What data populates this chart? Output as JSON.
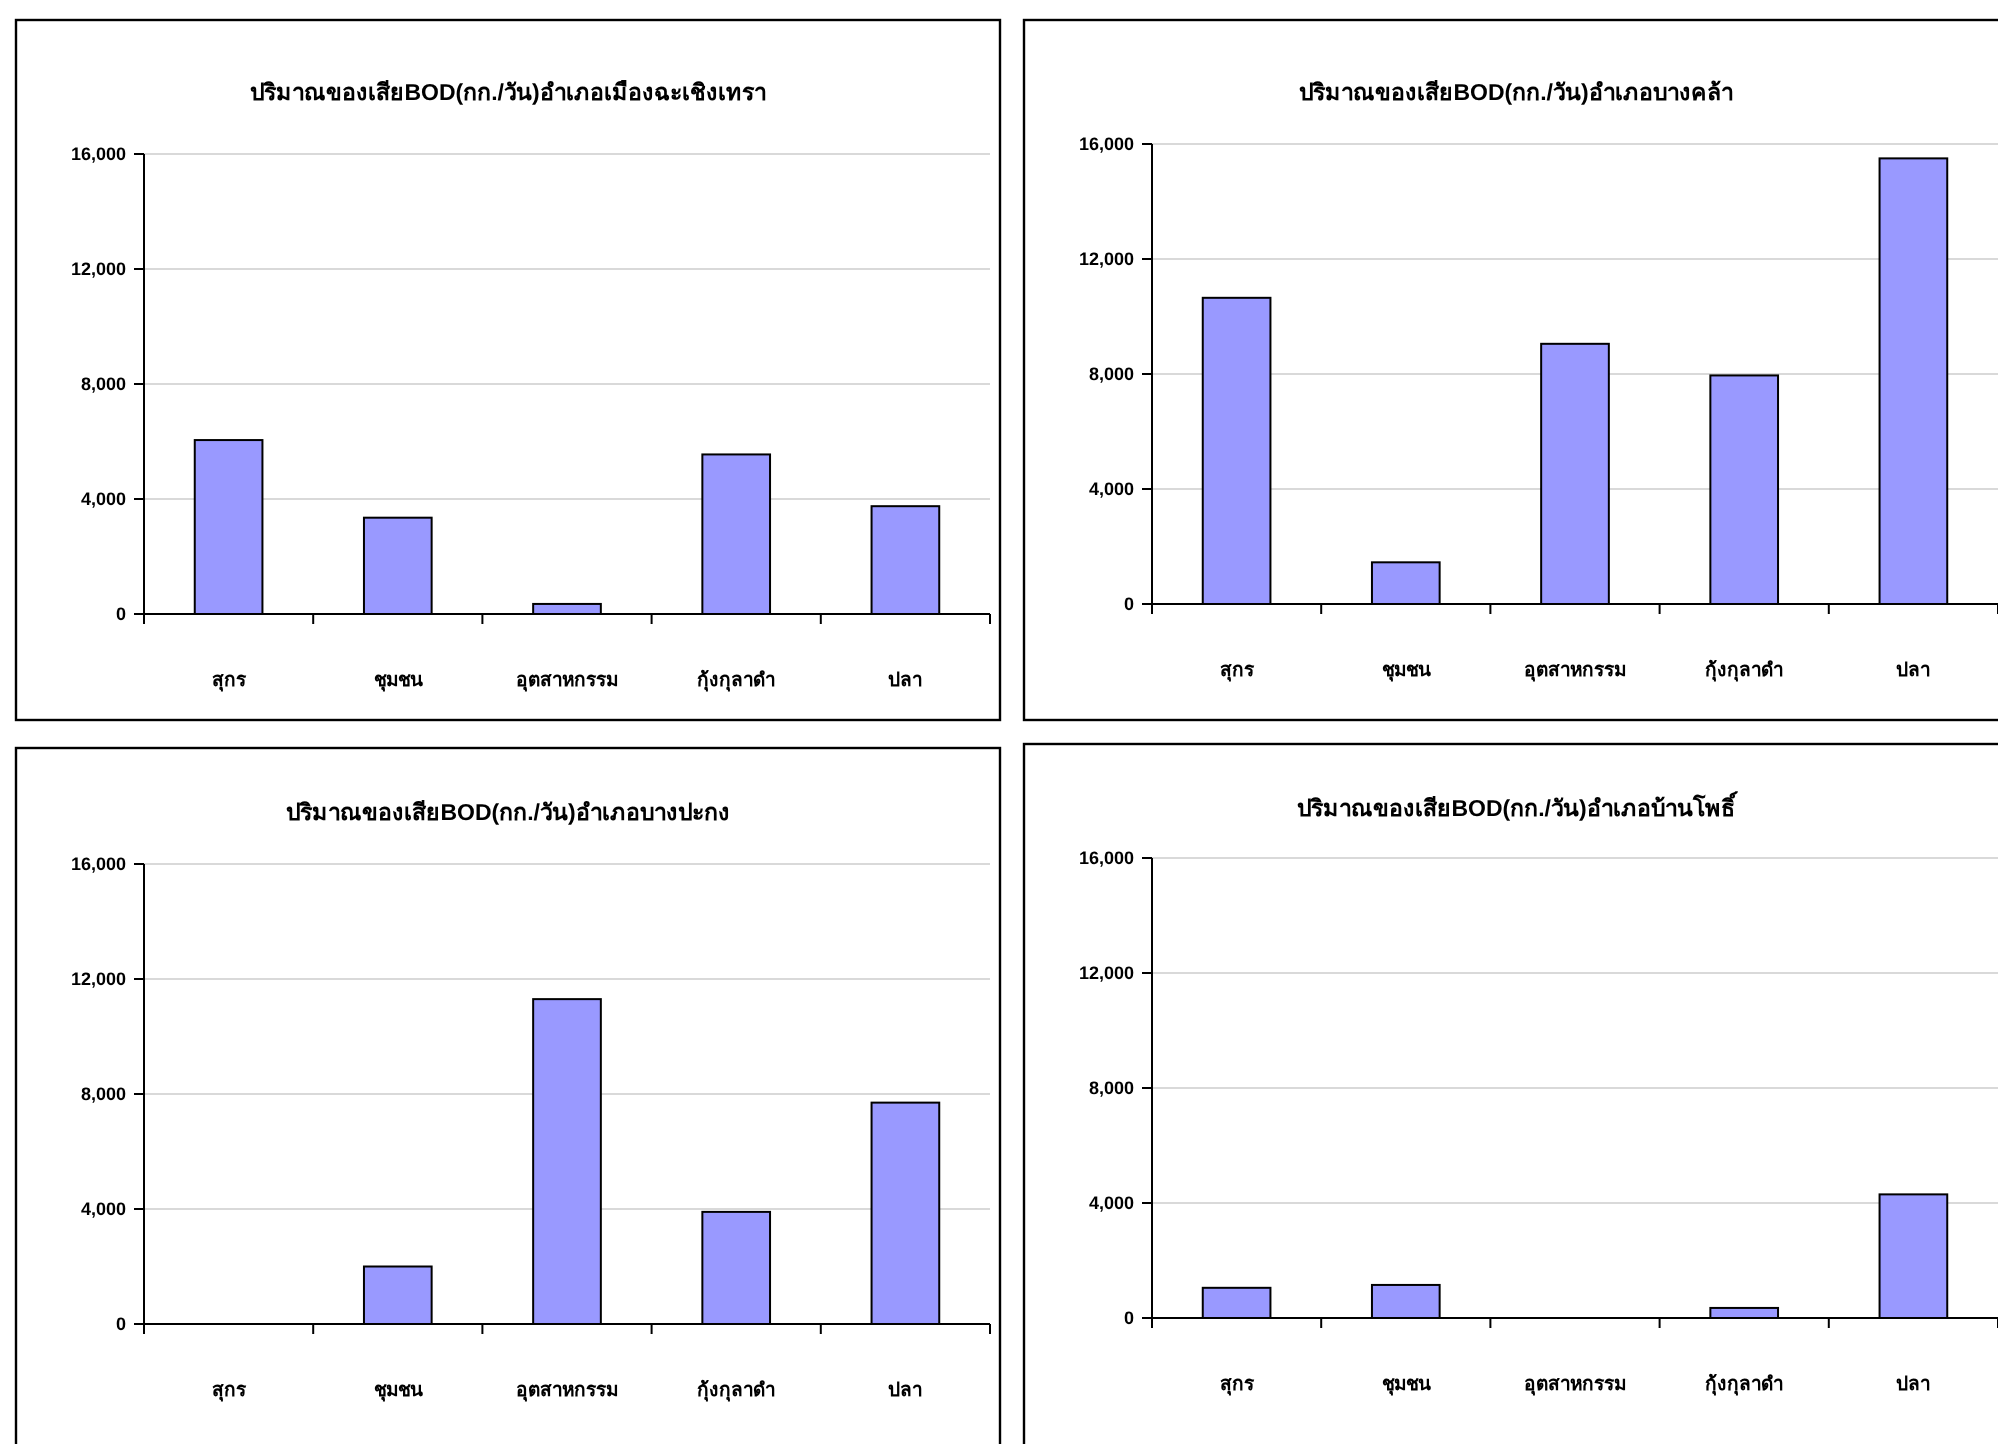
{
  "chart_data": [
    {
      "type": "bar",
      "title": "ปริมาณของเสียBOD(กก./วัน)อำเภอเมืองฉะเชิงเทรา",
      "categories": [
        "สุกร",
        "ชุมชน",
        "อุตสาหกรรม",
        "กุ้งกุลาดำ",
        "ปลา"
      ],
      "values": [
        6050,
        3350,
        350,
        5550,
        3750
      ],
      "color": "#9999ff",
      "ylim": [
        0,
        16000
      ],
      "yticks": [
        {
          "value": 0,
          "label": "0"
        },
        {
          "value": 4000,
          "label": "4,000"
        },
        {
          "value": 8000,
          "label": "8,000"
        },
        {
          "value": 12000,
          "label": "12,000"
        },
        {
          "value": 16000,
          "label": "16,000"
        }
      ],
      "grid": "y"
    },
    {
      "type": "bar",
      "title": "ปริมาณของเสียBOD(กก./วัน)อำเภอบางคล้า",
      "categories": [
        "สุกร",
        "ชุมชน",
        "อุตสาหกรรม",
        "กุ้งกุลาดำ",
        "ปลา"
      ],
      "values": [
        10650,
        1450,
        9050,
        7950,
        15500
      ],
      "color": "#9999ff",
      "ylim": [
        0,
        16000
      ],
      "yticks": [
        {
          "value": 0,
          "label": "0"
        },
        {
          "value": 4000,
          "label": "4,000"
        },
        {
          "value": 8000,
          "label": "8,000"
        },
        {
          "value": 12000,
          "label": "12,000"
        },
        {
          "value": 16000,
          "label": "16,000"
        }
      ],
      "grid": "y"
    },
    {
      "type": "bar",
      "title": "ปริมาณของเสียBOD(กก./วัน)อำเภอบางปะกง",
      "categories": [
        "สุกร",
        "ชุมชน",
        "อุตสาหกรรม",
        "กุ้งกุลาดำ",
        "ปลา"
      ],
      "values": [
        0,
        2000,
        11300,
        3900,
        7700
      ],
      "color": "#9999ff",
      "ylim": [
        0,
        16000
      ],
      "yticks": [
        {
          "value": 0,
          "label": "0"
        },
        {
          "value": 4000,
          "label": "4,000"
        },
        {
          "value": 8000,
          "label": "8,000"
        },
        {
          "value": 12000,
          "label": "12,000"
        },
        {
          "value": 16000,
          "label": "16,000"
        }
      ],
      "grid": "y"
    },
    {
      "type": "bar",
      "title": "ปริมาณของเสียBOD(กก./วัน)อำเภอบ้านโพธิ์",
      "categories": [
        "สุกร",
        "ชุมชน",
        "อุตสาหกรรม",
        "กุ้งกุลาดำ",
        "ปลา"
      ],
      "values": [
        1050,
        1150,
        0,
        350,
        4300
      ],
      "color": "#9999ff",
      "ylim": [
        0,
        16000
      ],
      "yticks": [
        {
          "value": 0,
          "label": "0"
        },
        {
          "value": 4000,
          "label": "4,000"
        },
        {
          "value": 8000,
          "label": "8,000"
        },
        {
          "value": 12000,
          "label": "12,000"
        },
        {
          "value": 16000,
          "label": "16,000"
        }
      ],
      "grid": "y"
    }
  ]
}
